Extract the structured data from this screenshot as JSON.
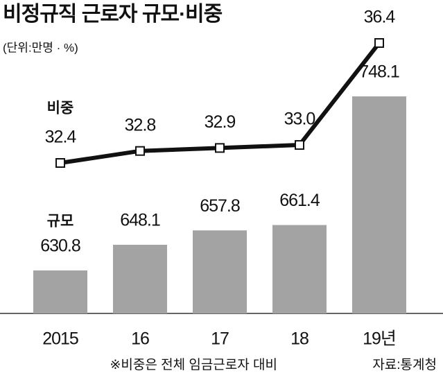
{
  "chart_data": {
    "type": "bar-line",
    "title": "비정규직 근로자 규모·비중",
    "subtitle": "(단위:만명 · %)",
    "categories": [
      "2015",
      "16",
      "17",
      "18",
      "19년"
    ],
    "series": [
      {
        "name": "규모",
        "type": "bar",
        "color": "#a3a3a3",
        "values": [
          630.8,
          648.1,
          657.8,
          661.4,
          748.1
        ]
      },
      {
        "name": "비중",
        "type": "line",
        "color": "#111111",
        "values": [
          32.4,
          32.8,
          32.9,
          33.0,
          36.4
        ],
        "value_labels": [
          "32.4",
          "32.8",
          "32.9",
          "33.0",
          "36.4"
        ]
      }
    ],
    "note": "※비중은 전체 임금근로자 대비",
    "source": "자료:통계청"
  }
}
